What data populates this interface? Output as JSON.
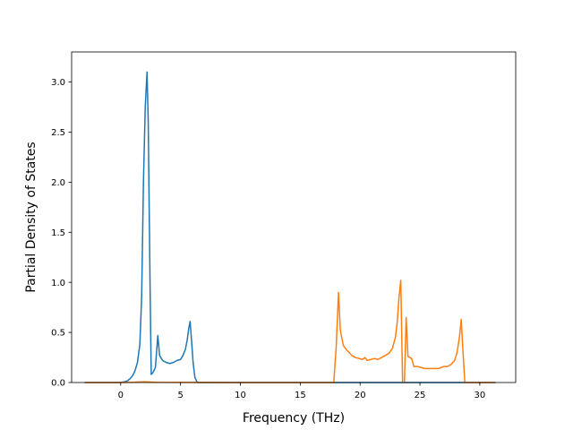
{
  "chart_data": {
    "type": "line",
    "title": "",
    "xlabel": "Frequency (THz)",
    "ylabel": "Partial Density of States",
    "xlim": [
      -4.1,
      33.0
    ],
    "ylim": [
      0.0,
      3.3
    ],
    "xticks": [
      0,
      5,
      10,
      15,
      20,
      25,
      30
    ],
    "yticks": [
      0.0,
      0.5,
      1.0,
      1.5,
      2.0,
      2.5,
      3.0
    ],
    "xtick_labels": [
      "0",
      "5",
      "10",
      "15",
      "20",
      "25",
      "30"
    ],
    "ytick_labels": [
      "0.0",
      "0.5",
      "1.0",
      "1.5",
      "2.0",
      "2.5",
      "3.0"
    ],
    "grid": false,
    "legend": null,
    "series": [
      {
        "color": "#1f77b4",
        "points": [
          [
            -3.0,
            0.0
          ],
          [
            -2.0,
            0.0
          ],
          [
            -1.0,
            0.0
          ],
          [
            0.0,
            0.0
          ],
          [
            0.2,
            0.005
          ],
          [
            0.4,
            0.01
          ],
          [
            0.6,
            0.02
          ],
          [
            0.8,
            0.04
          ],
          [
            1.0,
            0.07
          ],
          [
            1.2,
            0.12
          ],
          [
            1.4,
            0.2
          ],
          [
            1.6,
            0.38
          ],
          [
            1.75,
            0.85
          ],
          [
            1.9,
            2.0
          ],
          [
            2.05,
            2.75
          ],
          [
            2.2,
            3.1
          ],
          [
            2.3,
            2.6
          ],
          [
            2.45,
            1.0
          ],
          [
            2.55,
            0.08
          ],
          [
            2.7,
            0.1
          ],
          [
            2.9,
            0.15
          ],
          [
            3.1,
            0.47
          ],
          [
            3.25,
            0.27
          ],
          [
            3.5,
            0.22
          ],
          [
            3.8,
            0.2
          ],
          [
            4.1,
            0.19
          ],
          [
            4.4,
            0.2
          ],
          [
            4.7,
            0.22
          ],
          [
            5.0,
            0.23
          ],
          [
            5.2,
            0.27
          ],
          [
            5.4,
            0.33
          ],
          [
            5.55,
            0.42
          ],
          [
            5.7,
            0.55
          ],
          [
            5.8,
            0.61
          ],
          [
            5.9,
            0.45
          ],
          [
            6.05,
            0.2
          ],
          [
            6.2,
            0.05
          ],
          [
            6.4,
            0.0
          ],
          [
            8.0,
            0.0
          ],
          [
            12.0,
            0.0
          ],
          [
            16.0,
            0.0
          ],
          [
            20.0,
            0.0
          ],
          [
            24.0,
            0.0
          ],
          [
            28.0,
            0.0
          ],
          [
            31.3,
            0.0
          ]
        ]
      },
      {
        "color": "#ff7f0e",
        "points": [
          [
            -3.0,
            0.0
          ],
          [
            0.0,
            0.0
          ],
          [
            1.0,
            0.002
          ],
          [
            2.0,
            0.008
          ],
          [
            2.5,
            0.005
          ],
          [
            3.0,
            0.002
          ],
          [
            6.0,
            0.001
          ],
          [
            10.0,
            0.0
          ],
          [
            14.0,
            0.0
          ],
          [
            17.8,
            0.0
          ],
          [
            18.0,
            0.35
          ],
          [
            18.2,
            0.9
          ],
          [
            18.35,
            0.52
          ],
          [
            18.6,
            0.37
          ],
          [
            18.9,
            0.32
          ],
          [
            19.1,
            0.3
          ],
          [
            19.3,
            0.27
          ],
          [
            19.6,
            0.25
          ],
          [
            19.9,
            0.24
          ],
          [
            20.2,
            0.23
          ],
          [
            20.4,
            0.25
          ],
          [
            20.6,
            0.22
          ],
          [
            20.9,
            0.23
          ],
          [
            21.2,
            0.24
          ],
          [
            21.5,
            0.23
          ],
          [
            21.8,
            0.25
          ],
          [
            22.1,
            0.27
          ],
          [
            22.4,
            0.29
          ],
          [
            22.7,
            0.34
          ],
          [
            22.95,
            0.45
          ],
          [
            23.1,
            0.6
          ],
          [
            23.25,
            0.85
          ],
          [
            23.4,
            1.02
          ],
          [
            23.55,
            0.0
          ],
          [
            23.7,
            0.0
          ],
          [
            23.85,
            0.65
          ],
          [
            24.0,
            0.26
          ],
          [
            24.3,
            0.24
          ],
          [
            24.5,
            0.16
          ],
          [
            24.8,
            0.16
          ],
          [
            25.1,
            0.15
          ],
          [
            25.4,
            0.14
          ],
          [
            25.8,
            0.14
          ],
          [
            26.2,
            0.14
          ],
          [
            26.6,
            0.14
          ],
          [
            27.0,
            0.16
          ],
          [
            27.3,
            0.16
          ],
          [
            27.6,
            0.18
          ],
          [
            27.9,
            0.22
          ],
          [
            28.1,
            0.3
          ],
          [
            28.3,
            0.45
          ],
          [
            28.45,
            0.63
          ],
          [
            28.6,
            0.3
          ],
          [
            28.75,
            0.0
          ],
          [
            29.5,
            0.0
          ],
          [
            31.3,
            0.0
          ]
        ]
      }
    ]
  }
}
